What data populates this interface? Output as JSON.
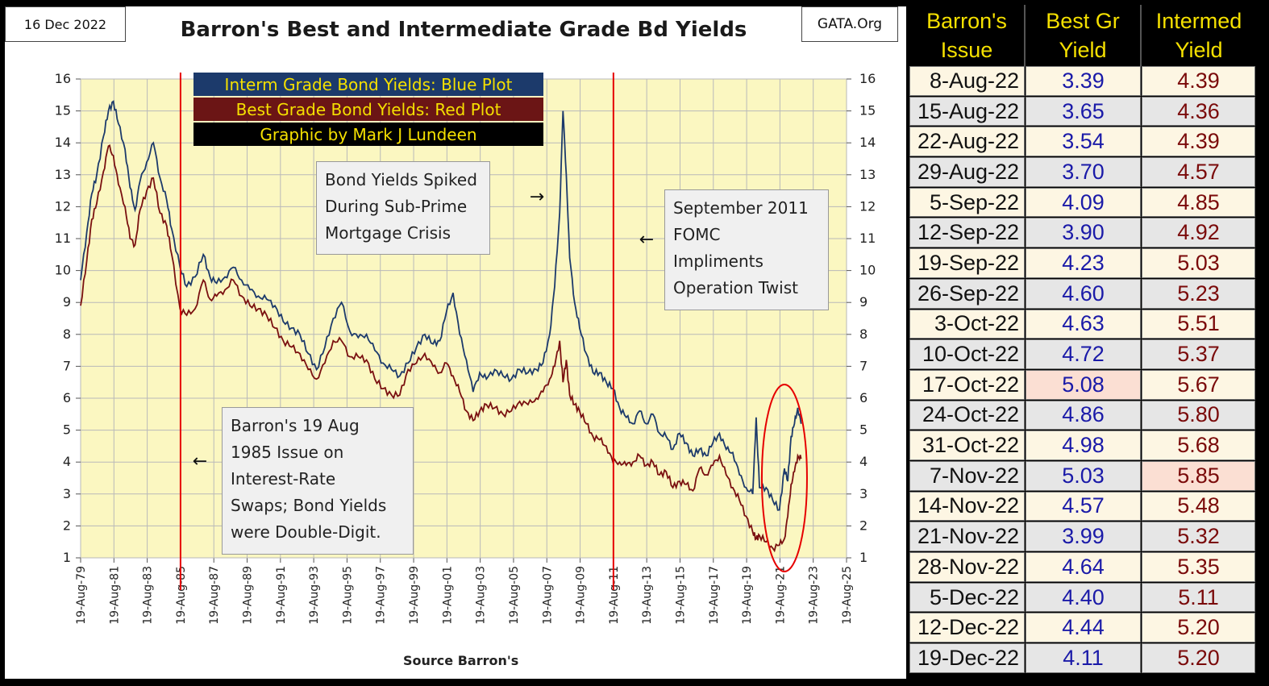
{
  "header": {
    "date": "16 Dec 2022",
    "title": "Barron's Best and Intermediate Grade Bd Yields",
    "source": "GATA.Org"
  },
  "legend": {
    "items": [
      {
        "label": "Interm Grade Bond Yields: Blue Plot",
        "color": "#1c3a6b"
      },
      {
        "label": "Best Grade Bond Yields: Red Plot",
        "color": "#6b1515"
      },
      {
        "label": "Graphic by Mark J Lundeen",
        "color": "#000000"
      }
    ]
  },
  "annotations": {
    "subprime": [
      "Bond Yields Spiked",
      "During Sub-Prime",
      "Mortgage Crisis"
    ],
    "twist": [
      "September 2011",
      "FOMC",
      "Impliments",
      "Operation Twist"
    ],
    "swaps": [
      "Barron's 19 Aug",
      "1985 Issue on",
      "Interest-Rate",
      "Swaps;  Bond Yields",
      "were Double-Digit."
    ]
  },
  "arrow_glyphs": {
    "left": "←",
    "right": "→"
  },
  "colors": {
    "plot_bg": "#fbf7c1",
    "interm_line": "#1c3a6b",
    "best_line": "#7a1010",
    "marker_line": "#e60000",
    "header_yellow": "#f5e000",
    "row_light": "#fdf6e3",
    "row_grey": "#e6e6e6",
    "highlight": "#fbdfd3"
  },
  "chart_data": {
    "type": "line",
    "title": "Barron's Best and Intermediate Grade Bd Yields",
    "xlabel": "Source Barron's",
    "ylabel": "",
    "ylim": [
      1,
      16
    ],
    "xlim": [
      1979.63,
      2025.63
    ],
    "x_tick_labels": [
      "19-Aug-79",
      "19-Aug-81",
      "19-Aug-83",
      "19-Aug-85",
      "19-Aug-87",
      "19-Aug-89",
      "19-Aug-91",
      "19-Aug-93",
      "19-Aug-95",
      "19-Aug-97",
      "19-Aug-99",
      "19-Aug-01",
      "19-Aug-03",
      "19-Aug-05",
      "19-Aug-07",
      "19-Aug-09",
      "19-Aug-11",
      "19-Aug-13",
      "19-Aug-15",
      "19-Aug-17",
      "19-Aug-19",
      "19-Aug-21",
      "19-Aug-23",
      "19-Aug-25"
    ],
    "y_tick_labels": [
      "1",
      "2",
      "3",
      "4",
      "5",
      "6",
      "7",
      "8",
      "9",
      "10",
      "11",
      "12",
      "13",
      "14",
      "15",
      "16"
    ],
    "grid": true,
    "vertical_markers": [
      1985.63,
      2011.63
    ],
    "series": [
      {
        "name": "Interm Grade Bond Yields",
        "color": "#1c3a6b",
        "x": [
          1979.63,
          1980.0,
          1980.3,
          1980.6,
          1981.0,
          1981.3,
          1981.6,
          1981.9,
          1982.3,
          1982.6,
          1982.9,
          1983.2,
          1983.6,
          1984.0,
          1984.4,
          1984.8,
          1985.1,
          1985.6,
          1986.0,
          1986.5,
          1987.0,
          1987.4,
          1987.8,
          1988.3,
          1988.8,
          1989.3,
          1989.8,
          1990.3,
          1990.8,
          1991.3,
          1991.8,
          1992.3,
          1992.8,
          1993.3,
          1993.8,
          1994.3,
          1994.8,
          1995.3,
          1995.8,
          1996.3,
          1996.8,
          1997.3,
          1997.8,
          1998.3,
          1998.8,
          1999.3,
          1999.8,
          2000.3,
          2000.8,
          2001.2,
          2001.6,
          2002.0,
          2002.4,
          2002.8,
          2003.2,
          2003.6,
          2004.0,
          2004.5,
          2005.0,
          2005.5,
          2006.0,
          2006.5,
          2007.0,
          2007.4,
          2007.8,
          2008.1,
          2008.4,
          2008.6,
          2008.8,
          2009.0,
          2009.3,
          2009.6,
          2010.0,
          2010.4,
          2010.8,
          2011.2,
          2011.6,
          2012.0,
          2012.4,
          2012.8,
          2013.2,
          2013.6,
          2014.0,
          2014.4,
          2014.8,
          2015.2,
          2015.6,
          2016.0,
          2016.4,
          2016.8,
          2017.2,
          2017.6,
          2018.0,
          2018.4,
          2018.8,
          2019.2,
          2019.6,
          2020.0,
          2020.2,
          2020.4,
          2020.8,
          2021.2,
          2021.6,
          2021.9,
          2022.1,
          2022.3,
          2022.5,
          2022.7,
          2022.9
        ],
        "values": [
          9.7,
          11.2,
          12.4,
          13.0,
          14.2,
          15.0,
          15.3,
          14.6,
          13.8,
          12.6,
          11.9,
          12.8,
          13.4,
          14.0,
          12.9,
          12.2,
          11.3,
          10.1,
          9.5,
          9.8,
          10.5,
          9.8,
          9.6,
          9.8,
          10.1,
          9.7,
          9.4,
          9.2,
          9.1,
          8.9,
          8.4,
          8.2,
          8.0,
          7.4,
          6.9,
          7.6,
          8.5,
          9.0,
          8.1,
          7.9,
          8.0,
          7.5,
          7.1,
          6.9,
          6.7,
          7.1,
          7.6,
          8.0,
          7.7,
          7.8,
          8.7,
          9.3,
          8.0,
          7.2,
          6.2,
          6.8,
          6.6,
          6.9,
          6.7,
          6.6,
          6.9,
          6.8,
          6.9,
          7.1,
          8.0,
          9.5,
          11.8,
          15.0,
          13.0,
          10.4,
          9.0,
          8.2,
          7.4,
          6.8,
          6.8,
          6.5,
          6.3,
          5.7,
          5.4,
          5.2,
          5.6,
          5.2,
          5.5,
          4.9,
          4.8,
          4.4,
          4.9,
          4.6,
          4.2,
          4.4,
          4.2,
          4.6,
          4.9,
          4.4,
          4.3,
          3.6,
          3.2,
          3.0,
          5.4,
          3.2,
          3.2,
          2.8,
          2.5,
          3.8,
          3.4,
          4.8,
          5.2,
          5.7,
          5.2
        ]
      },
      {
        "name": "Best Grade Bond Yields",
        "color": "#7a1010",
        "x": [
          1979.63,
          1980.0,
          1980.3,
          1980.6,
          1981.0,
          1981.3,
          1981.6,
          1981.9,
          1982.3,
          1982.6,
          1982.9,
          1983.2,
          1983.6,
          1984.0,
          1984.4,
          1984.8,
          1985.1,
          1985.6,
          1986.0,
          1986.5,
          1987.0,
          1987.4,
          1987.8,
          1988.3,
          1988.8,
          1989.3,
          1989.8,
          1990.3,
          1990.8,
          1991.3,
          1991.8,
          1992.3,
          1992.8,
          1993.3,
          1993.8,
          1994.3,
          1994.8,
          1995.3,
          1995.8,
          1996.3,
          1996.8,
          1997.3,
          1997.8,
          1998.3,
          1998.8,
          1999.3,
          1999.8,
          2000.3,
          2000.8,
          2001.2,
          2001.6,
          2002.0,
          2002.4,
          2002.8,
          2003.2,
          2003.6,
          2004.0,
          2004.5,
          2005.0,
          2005.5,
          2006.0,
          2006.5,
          2007.0,
          2007.4,
          2007.8,
          2008.1,
          2008.4,
          2008.6,
          2008.8,
          2009.0,
          2009.3,
          2009.6,
          2010.0,
          2010.4,
          2010.8,
          2011.2,
          2011.6,
          2012.0,
          2012.4,
          2012.8,
          2013.2,
          2013.6,
          2014.0,
          2014.4,
          2014.8,
          2015.2,
          2015.6,
          2016.0,
          2016.4,
          2016.8,
          2017.2,
          2017.6,
          2018.0,
          2018.4,
          2018.8,
          2019.2,
          2019.6,
          2020.0,
          2020.2,
          2020.4,
          2020.8,
          2021.2,
          2021.6,
          2021.9,
          2022.1,
          2022.3,
          2022.5,
          2022.7,
          2022.9
        ],
        "values": [
          8.9,
          10.3,
          11.6,
          12.1,
          13.1,
          13.9,
          13.6,
          12.7,
          12.0,
          11.0,
          10.8,
          11.9,
          12.5,
          12.9,
          11.8,
          11.4,
          10.5,
          8.8,
          8.6,
          8.8,
          9.7,
          9.1,
          9.2,
          9.4,
          9.7,
          9.2,
          8.9,
          8.8,
          8.6,
          8.2,
          7.8,
          7.6,
          7.4,
          6.9,
          6.6,
          7.1,
          7.8,
          7.8,
          7.3,
          7.3,
          7.2,
          6.6,
          6.3,
          6.1,
          6.1,
          6.9,
          7.1,
          7.4,
          7.0,
          6.8,
          7.1,
          6.7,
          6.2,
          5.6,
          5.3,
          5.6,
          5.8,
          5.7,
          5.5,
          5.6,
          5.9,
          5.8,
          6.0,
          6.2,
          6.6,
          7.0,
          7.8,
          6.5,
          7.2,
          6.1,
          5.8,
          5.6,
          5.2,
          4.8,
          4.7,
          4.5,
          4.0,
          4.0,
          3.9,
          4.0,
          4.2,
          3.9,
          4.0,
          3.6,
          3.7,
          3.2,
          3.4,
          3.3,
          3.1,
          3.8,
          3.6,
          3.9,
          4.2,
          3.6,
          3.2,
          2.8,
          2.3,
          1.8,
          1.6,
          1.7,
          1.5,
          1.3,
          1.4,
          1.6,
          2.3,
          3.3,
          3.7,
          4.2,
          4.1
        ]
      }
    ]
  },
  "table": {
    "headers": {
      "issue": [
        "Barron's",
        "Issue"
      ],
      "best": [
        "Best Gr",
        "Yield"
      ],
      "int": [
        "Intermed",
        "Yield"
      ]
    },
    "rows": [
      {
        "issue": "8-Aug-22",
        "best": "3.39",
        "int": "4.39"
      },
      {
        "issue": "15-Aug-22",
        "best": "3.65",
        "int": "4.36"
      },
      {
        "issue": "22-Aug-22",
        "best": "3.54",
        "int": "4.39"
      },
      {
        "issue": "29-Aug-22",
        "best": "3.70",
        "int": "4.57"
      },
      {
        "issue": "5-Sep-22",
        "best": "4.09",
        "int": "4.85"
      },
      {
        "issue": "12-Sep-22",
        "best": "3.90",
        "int": "4.92"
      },
      {
        "issue": "19-Sep-22",
        "best": "4.23",
        "int": "5.03"
      },
      {
        "issue": "26-Sep-22",
        "best": "4.60",
        "int": "5.23"
      },
      {
        "issue": "3-Oct-22",
        "best": "4.63",
        "int": "5.51"
      },
      {
        "issue": "10-Oct-22",
        "best": "4.72",
        "int": "5.37"
      },
      {
        "issue": "17-Oct-22",
        "best": "5.08",
        "int": "5.67"
      },
      {
        "issue": "24-Oct-22",
        "best": "4.86",
        "int": "5.80"
      },
      {
        "issue": "31-Oct-22",
        "best": "4.98",
        "int": "5.68"
      },
      {
        "issue": "7-Nov-22",
        "best": "5.03",
        "int": "5.85"
      },
      {
        "issue": "14-Nov-22",
        "best": "4.57",
        "int": "5.48"
      },
      {
        "issue": "21-Nov-22",
        "best": "3.99",
        "int": "5.32"
      },
      {
        "issue": "28-Nov-22",
        "best": "4.64",
        "int": "5.35"
      },
      {
        "issue": "5-Dec-22",
        "best": "4.40",
        "int": "5.11"
      },
      {
        "issue": "12-Dec-22",
        "best": "4.44",
        "int": "5.20"
      },
      {
        "issue": "19-Dec-22",
        "best": "4.11",
        "int": "5.20"
      }
    ],
    "highlight_best_row": 10,
    "highlight_int_row": 13
  }
}
